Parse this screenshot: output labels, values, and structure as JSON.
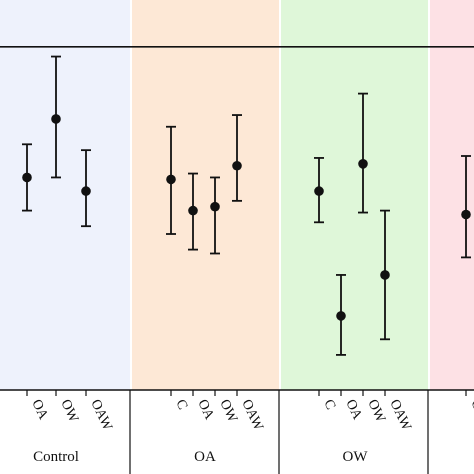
{
  "chart_data": {
    "type": "scatter",
    "subtype": "point-with-error-bars",
    "title": "",
    "xlabel": "",
    "ylabel": "",
    "grid": false,
    "legend": "none",
    "ylim": [
      0,
      100
    ],
    "reference_line_y": 88,
    "groups": [
      {
        "label": "Control",
        "color": "#eef2fc",
        "points": [
          {
            "label": "OA",
            "y": 54.5,
            "low": 46,
            "high": 63
          },
          {
            "label": "OW",
            "y": 69.5,
            "low": 54.5,
            "high": 85.5
          },
          {
            "label": "OAW",
            "y": 51,
            "low": 42,
            "high": 61.5
          }
        ]
      },
      {
        "label": "OA",
        "color": "#fde8d6",
        "points": [
          {
            "label": "C",
            "y": 54,
            "low": 40,
            "high": 67.5
          },
          {
            "label": "OA",
            "y": 46,
            "low": 36,
            "high": 55.5
          },
          {
            "label": "OW",
            "y": 47,
            "low": 35,
            "high": 54.5
          },
          {
            "label": "OAW",
            "y": 57.5,
            "low": 48.5,
            "high": 70.5
          }
        ]
      },
      {
        "label": "OW",
        "color": "#dff7d9",
        "points": [
          {
            "label": "C",
            "y": 51,
            "low": 43,
            "high": 59.5
          },
          {
            "label": "OA",
            "y": 19,
            "low": 9,
            "high": 29.5
          },
          {
            "label": "OW",
            "y": 58,
            "low": 45.5,
            "high": 76
          },
          {
            "label": "OAW",
            "y": 29.5,
            "low": 13,
            "high": 46
          }
        ]
      },
      {
        "label": "",
        "color": "#fde1e5",
        "points": [
          {
            "label": "C",
            "y": 45,
            "low": 34,
            "high": 60
          }
        ]
      }
    ]
  },
  "colors": {
    "marker": "#111111",
    "axis": "#111111"
  }
}
